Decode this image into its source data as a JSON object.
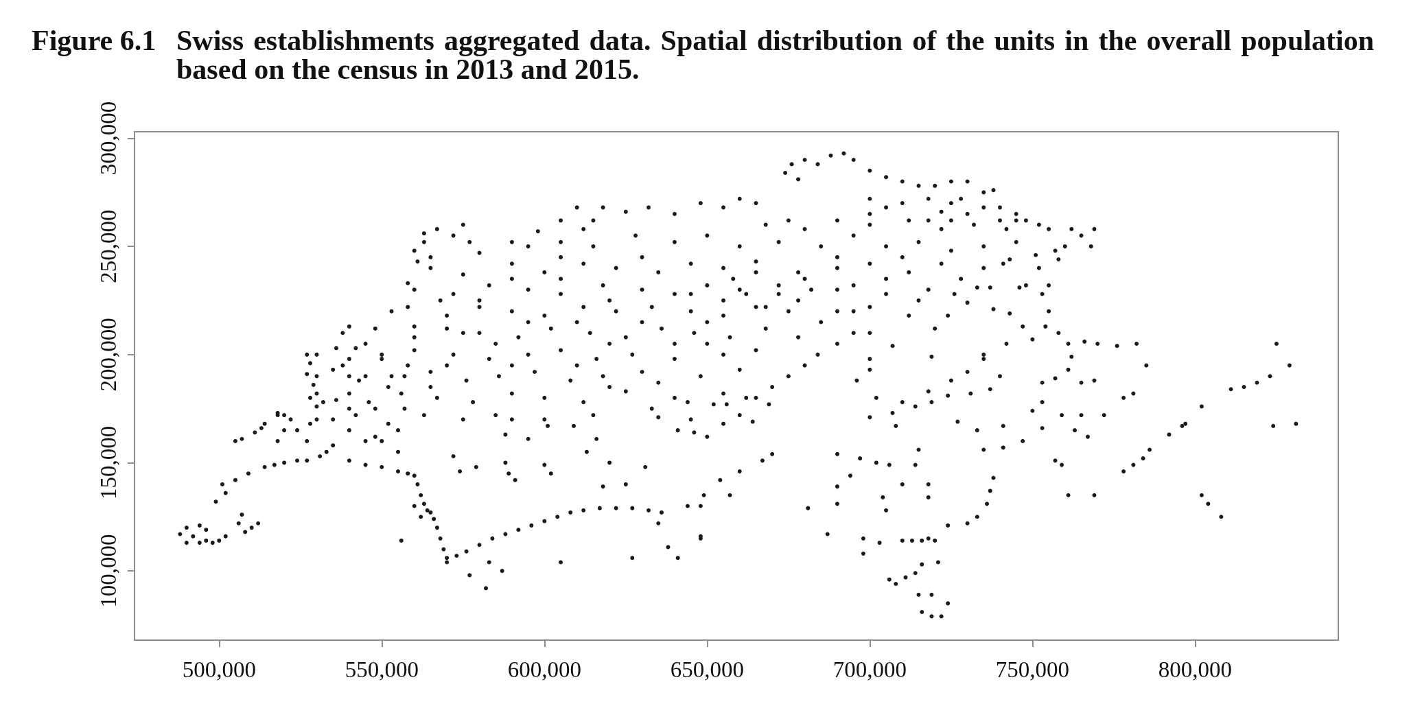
{
  "chart_data": {
    "type": "scatter",
    "title": "Figure 6.1\tSwiss establishments aggregated data. Spatial distribution of the units in the overall population based on the census in 2013 and 2015.",
    "color": "#1a1a1a",
    "marker": "circle",
    "xlim": [
      474000,
      844000
    ],
    "ylim": [
      68000,
      303000
    ],
    "xticks": [
      {
        "value": 500000,
        "label": "500,000"
      },
      {
        "value": 550000,
        "label": "550,000"
      },
      {
        "value": 600000,
        "label": "600,000"
      },
      {
        "value": 650000,
        "label": "650,000"
      },
      {
        "value": 700000,
        "label": "700,000"
      },
      {
        "value": 750000,
        "label": "750,000"
      },
      {
        "value": 800000,
        "label": "800,000"
      }
    ],
    "yticks": [
      {
        "value": 100000,
        "label": "100,000"
      },
      {
        "value": 150000,
        "label": "150,000"
      },
      {
        "value": 200000,
        "label": "200,000"
      },
      {
        "value": 250000,
        "label": "250,000"
      },
      {
        "value": 300000,
        "label": "300,000"
      }
    ],
    "x": [
      488000,
      490000,
      492000,
      494000,
      496000,
      498000,
      500000,
      502000,
      490000,
      494000,
      496000,
      506000,
      507000,
      508000,
      510000,
      512000,
      499000,
      502000,
      501000,
      505000,
      509000,
      514000,
      520000,
      527000,
      531000,
      517000,
      524000,
      533000,
      505000,
      507000,
      511000,
      513000,
      518000,
      520000,
      528000,
      522000,
      529000,
      527000,
      530000,
      532000,
      535000,
      538000,
      540000,
      542000,
      545000,
      548000,
      550000,
      552000,
      555000,
      558000,
      536000,
      530000,
      528000,
      518000,
      524000,
      540000,
      545000,
      550000,
      555000,
      540000,
      545000,
      550000,
      555000,
      558000,
      560000,
      561000,
      562000,
      563000,
      565000,
      566000,
      567000,
      568000,
      569000,
      570000,
      556000,
      560000,
      564000,
      562000,
      570000,
      573000,
      576000,
      580000,
      584000,
      588000,
      592000,
      596000,
      600000,
      604000,
      608000,
      612000,
      617000,
      622000,
      627000,
      632000,
      636000,
      577000,
      582000,
      583000,
      587000,
      605000,
      627000,
      641000,
      638000,
      635000,
      648000,
      574000,
      579000,
      588000,
      589000,
      591000,
      595000,
      601000,
      609000,
      600000,
      602000,
      588000,
      572000,
      613000,
      616000,
      620000,
      618000,
      625000,
      631000,
      633000,
      635000,
      641000,
      646000,
      644000,
      648000,
      660000,
      667000,
      670000,
      649000,
      654000,
      657000,
      648000,
      644000,
      652000,
      656000,
      664000,
      669000,
      681000,
      687000,
      690000,
      690000,
      690000,
      694000,
      697000,
      702000,
      706000,
      704000,
      705000,
      698000,
      703000,
      698000,
      700000,
      707000,
      708000,
      714000,
      719000,
      724000,
      731000,
      737000,
      727000,
      733000,
      735000,
      741000,
      747000,
      741000,
      750000,
      753000,
      753000,
      715000,
      714000,
      718000,
      718000,
      710000,
      710000,
      713000,
      716000,
      718000,
      720000,
      706000,
      708000,
      711000,
      714000,
      716000,
      721000,
      716000,
      719000,
      722000,
      724000,
      719000,
      715000,
      724000,
      730000,
      733000,
      736000,
      737000,
      738000,
      761000,
      769000,
      757000,
      759000,
      759000,
      765000,
      772000,
      763000,
      767000,
      778000,
      781000,
      784000,
      786000,
      792000,
      796000,
      797000,
      778000,
      781000,
      802000,
      811000,
      802000,
      804000,
      808000,
      824000,
      831000,
      766000,
      770000,
      776000,
      782000,
      785000,
      815000,
      819000,
      823000,
      829000,
      825000,
      765000,
      769000,
      760000,
      765000,
      769000,
      768000,
      758000,
      755000,
      753000,
      755000,
      754000,
      758000,
      761000,
      762000,
      761000,
      757000,
      753000,
      741000,
      743000,
      751000,
      746000,
      737000,
      733000,
      730000,
      738000,
      743000,
      747000,
      724000,
      719000,
      674000,
      676000,
      680000,
      684000,
      688000,
      692000,
      695000,
      700000,
      705000,
      678000,
      710000,
      715000,
      720000,
      725000,
      730000,
      735000,
      700000,
      710000,
      718000,
      725000,
      740000,
      745000,
      748000,
      610000,
      605000,
      625000,
      632000,
      640000,
      648000,
      655000,
      660000,
      665000,
      668000,
      675000,
      680000,
      690000,
      700000,
      712000,
      722000,
      732000,
      745000,
      752000,
      755000,
      762000,
      560000,
      563000,
      567000,
      572000,
      577000,
      575000,
      565000,
      595000,
      605000,
      615000,
      628000,
      640000,
      650000,
      660000,
      672000,
      685000,
      695000,
      705000,
      715000,
      725000,
      735000,
      745000,
      757000,
      565000,
      575000,
      590000,
      600000,
      612000,
      622000,
      635000,
      645000,
      655000,
      665000,
      678000,
      690000,
      700000,
      712000,
      722000,
      735000,
      752000,
      560000,
      572000,
      583000,
      595000,
      605000,
      618000,
      630000,
      640000,
      650000,
      660000,
      672000,
      682000,
      695000,
      705000,
      718000,
      726000,
      553000,
      558000,
      570000,
      580000,
      590000,
      600000,
      612000,
      622000,
      633000,
      645000,
      655000,
      665000,
      675000,
      690000,
      700000,
      712000,
      538000,
      548000,
      560000,
      570000,
      580000,
      592000,
      602000,
      614000,
      625000,
      636000,
      646000,
      657000,
      668000,
      678000,
      700000,
      720000,
      527000,
      540000,
      550000,
      560000,
      572000,
      583000,
      595000,
      605000,
      616000,
      627000,
      640000,
      655000,
      665000,
      700000,
      735000,
      527000,
      535000,
      543000,
      553000,
      565000,
      576000,
      586000,
      597000,
      608000,
      618000,
      630000,
      648000,
      660000,
      700000,
      740000,
      530000,
      536000,
      546000,
      556000,
      567000,
      578000,
      590000,
      600000,
      612000,
      625000,
      655000,
      662000,
      514000,
      518000,
      530000,
      542000,
      552000,
      563000,
      575000,
      585000,
      615000,
      645000,
      665000,
      670000,
      675000,
      680000,
      684000,
      690000,
      695000,
      707000,
      696000,
      702000,
      710000,
      718000,
      725000,
      730000,
      735000,
      742000,
      750000,
      650000,
      655000,
      660000,
      655000,
      662000,
      668000,
      672000,
      678000,
      658000,
      665000,
      645000,
      650000,
      725000,
      730000,
      735000,
      740000,
      728000,
      742000,
      738000,
      722000,
      718000,
      700000,
      705000,
      615000,
      612000,
      618000,
      598000,
      590000,
      580000,
      605000,
      630000,
      690000,
      710000,
      545000,
      540000,
      560000,
      528000,
      530000,
      540000,
      540000,
      565000,
      570000,
      590000,
      610000,
      620000,
      630000,
      640000,
      650000,
      585000,
      575000,
      595000,
      610000,
      620000,
      605000,
      590000,
      580000,
      568000,
      558000,
      561000,
      563000,
      520000,
      535000,
      548000,
      557000,
      557000,
      590000,
      600000,
      620000,
      635000,
      640000,
      690000,
      695000,
      680000,
      685000,
      705000,
      715000,
      728000,
      748000
    ],
    "values": [
      117000,
      113000,
      116000,
      113000,
      114000,
      113000,
      114000,
      116000,
      120000,
      121000,
      119000,
      122000,
      126000,
      118000,
      120000,
      122000,
      132000,
      136000,
      140000,
      142000,
      145000,
      148000,
      150000,
      151000,
      153000,
      149000,
      151000,
      155000,
      160000,
      161000,
      164000,
      166000,
      173000,
      172000,
      180000,
      170000,
      186000,
      160000,
      190000,
      178000,
      170000,
      195000,
      182000,
      203000,
      190000,
      175000,
      198000,
      185000,
      165000,
      195000,
      203000,
      200000,
      168000,
      160000,
      165000,
      165000,
      160000,
      160000,
      155000,
      151000,
      149000,
      148000,
      146000,
      145000,
      144000,
      140000,
      135000,
      131000,
      127000,
      124000,
      120000,
      115000,
      110000,
      106000,
      114000,
      130000,
      128000,
      125000,
      104000,
      107000,
      109000,
      112000,
      115000,
      117000,
      119000,
      121000,
      123000,
      125000,
      127000,
      128000,
      129000,
      129000,
      129000,
      128000,
      127000,
      98000,
      92000,
      104000,
      100000,
      104000,
      106000,
      106000,
      111000,
      122000,
      115000,
      146000,
      148000,
      150000,
      145000,
      142000,
      161000,
      167000,
      167000,
      149000,
      145000,
      163000,
      153000,
      155000,
      161000,
      150000,
      139000,
      140000,
      148000,
      175000,
      171000,
      165000,
      164000,
      130000,
      130000,
      146000,
      151000,
      154000,
      135000,
      142000,
      135000,
      116000,
      178000,
      177000,
      177000,
      169000,
      177000,
      129000,
      117000,
      131000,
      139000,
      154000,
      144000,
      152000,
      150000,
      149000,
      134000,
      128000,
      115000,
      113000,
      108000,
      171000,
      173000,
      167000,
      176000,
      178000,
      181000,
      182000,
      184000,
      169000,
      165000,
      156000,
      157000,
      160000,
      167000,
      174000,
      178000,
      166000,
      156000,
      149000,
      140000,
      134000,
      140000,
      114000,
      114000,
      114000,
      115000,
      114000,
      96000,
      94000,
      97000,
      99000,
      103000,
      104000,
      81000,
      79000,
      79000,
      85000,
      89000,
      89000,
      121000,
      122000,
      125000,
      131000,
      137000,
      143000,
      135000,
      135000,
      151000,
      149000,
      172000,
      172000,
      172000,
      165000,
      162000,
      146000,
      149000,
      152000,
      156000,
      163000,
      167000,
      168000,
      180000,
      182000,
      176000,
      184000,
      135000,
      131000,
      125000,
      167000,
      168000,
      206000,
      205000,
      204000,
      205000,
      195000,
      185000,
      187000,
      190000,
      195000,
      205000,
      187000,
      188000,
      250000,
      255000,
      258000,
      250000,
      244000,
      232000,
      228000,
      220000,
      213000,
      210000,
      205000,
      199000,
      193000,
      189000,
      187000,
      242000,
      244000,
      246000,
      231000,
      231000,
      231000,
      224000,
      221000,
      219000,
      213000,
      218000,
      199000,
      284000,
      288000,
      290000,
      288000,
      292000,
      293000,
      290000,
      285000,
      282000,
      281000,
      280000,
      278000,
      278000,
      280000,
      280000,
      275000,
      272000,
      270000,
      272000,
      270000,
      268000,
      265000,
      262000,
      268000,
      262000,
      266000,
      268000,
      265000,
      270000,
      268000,
      272000,
      270000,
      260000,
      262000,
      258000,
      262000,
      260000,
      262000,
      258000,
      260000,
      262000,
      260000,
      258000,
      258000,
      248000,
      256000,
      258000,
      255000,
      252000,
      260000,
      245000,
      250000,
      252000,
      250000,
      255000,
      252000,
      255000,
      250000,
      252000,
      250000,
      255000,
      250000,
      252000,
      248000,
      250000,
      252000,
      248000,
      240000,
      237000,
      242000,
      238000,
      242000,
      240000,
      238000,
      242000,
      240000,
      243000,
      238000,
      240000,
      242000,
      238000,
      242000,
      240000,
      240000,
      230000,
      228000,
      232000,
      230000,
      228000,
      232000,
      230000,
      228000,
      232000,
      230000,
      228000,
      230000,
      232000,
      228000,
      230000,
      228000,
      220000,
      222000,
      218000,
      222000,
      220000,
      218000,
      222000,
      220000,
      222000,
      220000,
      218000,
      222000,
      220000,
      220000,
      222000,
      218000,
      210000,
      212000,
      208000,
      212000,
      210000,
      208000,
      212000,
      210000,
      208000,
      212000,
      210000,
      208000,
      212000,
      208000,
      210000,
      212000,
      200000,
      198000,
      200000,
      202000,
      200000,
      198000,
      200000,
      202000,
      198000,
      200000,
      198000,
      200000,
      202000,
      198000,
      200000,
      191000,
      193000,
      188000,
      190000,
      192000,
      188000,
      190000,
      192000,
      188000,
      190000,
      192000,
      190000,
      193000,
      193000,
      190000,
      182000,
      179000,
      178000,
      182000,
      180000,
      178000,
      182000,
      180000,
      178000,
      183000,
      182000,
      180000,
      168000,
      172000,
      170000,
      172000,
      168000,
      172000,
      170000,
      172000,
      172000,
      170000,
      180000,
      185000,
      190000,
      195000,
      200000,
      205000,
      210000,
      204000,
      188000,
      180000,
      178000,
      183000,
      188000,
      192000,
      198000,
      205000,
      207000,
      162000,
      168000,
      172000,
      225000,
      228000,
      222000,
      232000,
      225000,
      235000,
      238000,
      228000,
      215000,
      262000,
      265000,
      268000,
      262000,
      272000,
      258000,
      276000,
      266000,
      262000,
      265000,
      268000,
      262000,
      258000,
      268000,
      257000,
      252000,
      247000,
      245000,
      245000,
      245000,
      245000,
      205000,
      213000,
      213000,
      196000,
      176000,
      175000,
      190000,
      185000,
      195000,
      195000,
      195000,
      205000,
      215000,
      205000,
      205000,
      205000,
      210000,
      215000,
      215000,
      225000,
      235000,
      235000,
      225000,
      225000,
      233000,
      243000,
      252000,
      165000,
      158000,
      162000,
      175000,
      190000,
      170000,
      170000,
      185000,
      187000,
      180000,
      230000,
      220000,
      235000,
      215000,
      235000,
      225000,
      235000,
      232000
    ]
  }
}
